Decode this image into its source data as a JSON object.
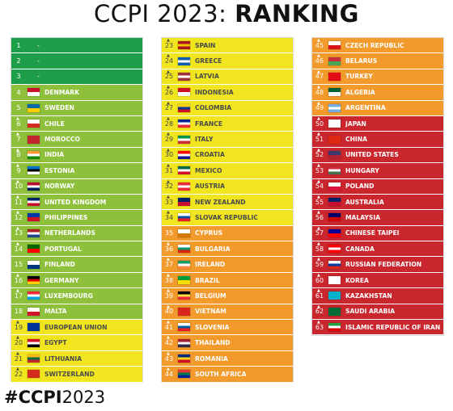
{
  "title": {
    "normal": "CCPI 2023: ",
    "bold": "RANKING"
  },
  "hashtag": {
    "bold": "#CCPI",
    "normal": "2023"
  },
  "colors": {
    "very_high": "#1f9e4a",
    "high": "#8fc03c",
    "medium": "#f0e51f",
    "low": "#f39a2d",
    "very_low": "#c9262e"
  },
  "columns": [
    [
      {
        "rank": "1",
        "name": "-",
        "group": "g1",
        "trend": "",
        "flag": []
      },
      {
        "rank": "2",
        "name": "-",
        "group": "g1",
        "trend": "",
        "flag": []
      },
      {
        "rank": "3",
        "name": "-",
        "group": "g1",
        "trend": "",
        "flag": []
      },
      {
        "rank": "4",
        "name": "DENMARK",
        "group": "g2",
        "trend": "",
        "flag": [
          "#c8102e",
          "#ffffff"
        ]
      },
      {
        "rank": "5",
        "name": "SWEDEN",
        "group": "g2",
        "trend": "",
        "flag": [
          "#006aa7",
          "#fecc00"
        ]
      },
      {
        "rank": "6",
        "name": "CHILE",
        "group": "g2",
        "trend": "▲",
        "flag": [
          "#ffffff",
          "#d52b1e"
        ]
      },
      {
        "rank": "7",
        "name": "MOROCCO",
        "group": "g2",
        "trend": "▲",
        "flag": [
          "#c1272d",
          "#c1272d"
        ]
      },
      {
        "rank": "8",
        "name": "INDIA",
        "group": "g2",
        "trend": "▲",
        "flag": [
          "#ff9933",
          "#ffffff",
          "#138808"
        ]
      },
      {
        "rank": "9",
        "name": "ESTONIA",
        "group": "g2",
        "trend": "▲",
        "flag": [
          "#0072ce",
          "#000000",
          "#ffffff"
        ]
      },
      {
        "rank": "10",
        "name": "NORWAY",
        "group": "g2",
        "trend": "▲",
        "flag": [
          "#ba0c2f",
          "#ffffff",
          "#00205b"
        ]
      },
      {
        "rank": "11",
        "name": "UNITED KINGDOM",
        "group": "g2",
        "trend": "▲",
        "flag": [
          "#012169",
          "#ffffff",
          "#c8102e"
        ]
      },
      {
        "rank": "12",
        "name": "PHILIPPINES",
        "group": "g2",
        "trend": "▲",
        "flag": [
          "#0038a8",
          "#ce1126"
        ]
      },
      {
        "rank": "13",
        "name": "NETHERLANDS",
        "group": "g2",
        "trend": "▲",
        "flag": [
          "#ae1c28",
          "#ffffff",
          "#21468b"
        ]
      },
      {
        "rank": "14",
        "name": "PORTUGAL",
        "group": "g2",
        "trend": "▲",
        "flag": [
          "#006600",
          "#ff0000"
        ]
      },
      {
        "rank": "15",
        "name": "FINLAND",
        "group": "g2",
        "trend": "",
        "flag": [
          "#ffffff",
          "#003580"
        ]
      },
      {
        "rank": "16",
        "name": "GERMANY",
        "group": "g2",
        "trend": "▲",
        "flag": [
          "#000000",
          "#dd0000",
          "#ffce00"
        ]
      },
      {
        "rank": "17",
        "name": "LUXEMBOURG",
        "group": "g2",
        "trend": "▲",
        "flag": [
          "#ed2939",
          "#ffffff",
          "#00a1de"
        ]
      },
      {
        "rank": "18",
        "name": "MALTA",
        "group": "g2",
        "trend": "",
        "flag": [
          "#ffffff",
          "#cf142b"
        ]
      },
      {
        "rank": "19",
        "name": "EUROPEAN UNION",
        "group": "g3",
        "trend": "▲",
        "flag": [
          "#003399",
          "#003399"
        ]
      },
      {
        "rank": "20",
        "name": "EGYPT",
        "group": "g3",
        "trend": "▲",
        "flag": [
          "#ce1126",
          "#ffffff",
          "#000000"
        ]
      },
      {
        "rank": "21",
        "name": "LITHUANIA",
        "group": "g3",
        "trend": "▲",
        "flag": [
          "#fdb913",
          "#006a44",
          "#c1272d"
        ]
      },
      {
        "rank": "22",
        "name": "SWITZERLAND",
        "group": "g3",
        "trend": "▲",
        "flag": [
          "#d52b1e",
          "#d52b1e"
        ]
      }
    ],
    [
      {
        "rank": "23",
        "name": "SPAIN",
        "group": "g3",
        "trend": "▲",
        "flag": [
          "#aa151b",
          "#f1bf00",
          "#aa151b"
        ]
      },
      {
        "rank": "24",
        "name": "GREECE",
        "group": "g3",
        "trend": "▲",
        "flag": [
          "#0d5eaf",
          "#ffffff",
          "#0d5eaf"
        ]
      },
      {
        "rank": "25",
        "name": "LATVIA",
        "group": "g3",
        "trend": "▲",
        "flag": [
          "#9e3039",
          "#ffffff",
          "#9e3039"
        ]
      },
      {
        "rank": "26",
        "name": "INDONESIA",
        "group": "g3",
        "trend": "▲",
        "flag": [
          "#ce1126",
          "#ffffff"
        ]
      },
      {
        "rank": "27",
        "name": "COLOMBIA",
        "group": "g3",
        "trend": "▲",
        "flag": [
          "#fcd116",
          "#003893",
          "#ce1126"
        ]
      },
      {
        "rank": "28",
        "name": "FRANCE",
        "group": "g3",
        "trend": "▲",
        "flag": [
          "#002395",
          "#ffffff",
          "#ed2939"
        ]
      },
      {
        "rank": "29",
        "name": "ITALY",
        "group": "g3",
        "trend": "▲",
        "flag": [
          "#009246",
          "#ffffff",
          "#ce2b37"
        ]
      },
      {
        "rank": "30",
        "name": "CROATIA",
        "group": "g3",
        "trend": "▲",
        "flag": [
          "#ff0000",
          "#ffffff",
          "#171796"
        ]
      },
      {
        "rank": "31",
        "name": "MEXICO",
        "group": "g3",
        "trend": "▲",
        "flag": [
          "#006847",
          "#ffffff",
          "#ce1126"
        ]
      },
      {
        "rank": "32",
        "name": "AUSTRIA",
        "group": "g3",
        "trend": "▲",
        "flag": [
          "#ed2939",
          "#ffffff",
          "#ed2939"
        ]
      },
      {
        "rank": "33",
        "name": "NEW ZEALAND",
        "group": "g3",
        "trend": "▲",
        "flag": [
          "#012169",
          "#c8102e"
        ]
      },
      {
        "rank": "34",
        "name": "SLOVAK REPUBLIC",
        "group": "g3",
        "trend": "▲",
        "flag": [
          "#ffffff",
          "#0b4ea2",
          "#ee1c25"
        ]
      },
      {
        "rank": "35",
        "name": "CYPRUS",
        "group": "g4",
        "trend": "",
        "flag": [
          "#ffffff",
          "#d57800"
        ]
      },
      {
        "rank": "36",
        "name": "BULGARIA",
        "group": "g4",
        "trend": "▲",
        "flag": [
          "#ffffff",
          "#00966e",
          "#d62612"
        ]
      },
      {
        "rank": "37",
        "name": "IRELAND",
        "group": "g4",
        "trend": "▲",
        "flag": [
          "#169b62",
          "#ffffff",
          "#ff883e"
        ]
      },
      {
        "rank": "38",
        "name": "BRAZIL",
        "group": "g4",
        "trend": "▲",
        "flag": [
          "#009c3b",
          "#ffdf00"
        ]
      },
      {
        "rank": "39",
        "name": "BELGIUM",
        "group": "g4",
        "trend": "▲",
        "flag": [
          "#000000",
          "#fae042",
          "#ed2939"
        ]
      },
      {
        "rank": "40",
        "name": "VIETNAM",
        "group": "g4",
        "trend": "▲",
        "flag": [
          "#da251d",
          "#da251d"
        ]
      },
      {
        "rank": "41",
        "name": "SLOVENIA",
        "group": "g4",
        "trend": "▲",
        "flag": [
          "#ffffff",
          "#005da4",
          "#ed1c24"
        ]
      },
      {
        "rank": "42",
        "name": "THAILAND",
        "group": "g4",
        "trend": "▲",
        "flag": [
          "#a51931",
          "#f4f5f8",
          "#2d2a4a"
        ]
      },
      {
        "rank": "43",
        "name": "ROMANIA",
        "group": "g4",
        "trend": "▲",
        "flag": [
          "#002b7f",
          "#fcd116",
          "#ce1126"
        ]
      },
      {
        "rank": "44",
        "name": "SOUTH AFRICA",
        "group": "g4",
        "trend": "▲",
        "flag": [
          "#de3831",
          "#007a4d",
          "#002395"
        ]
      }
    ],
    [
      {
        "rank": "45",
        "name": "CZECH REPUBLIC",
        "group": "g4",
        "trend": "▲",
        "flag": [
          "#ffffff",
          "#d7141a"
        ]
      },
      {
        "rank": "46",
        "name": "BELARUS",
        "group": "g4",
        "trend": "▲",
        "flag": [
          "#c8313e",
          "#4aa657"
        ]
      },
      {
        "rank": "47",
        "name": "TURKEY",
        "group": "g4",
        "trend": "▲",
        "flag": [
          "#e30a17",
          "#e30a17"
        ]
      },
      {
        "rank": "48",
        "name": "ALGERIA",
        "group": "g4",
        "trend": "▲",
        "flag": [
          "#006233",
          "#ffffff"
        ]
      },
      {
        "rank": "49",
        "name": "ARGENTINA",
        "group": "g4",
        "trend": "▲",
        "flag": [
          "#74acdf",
          "#ffffff",
          "#74acdf"
        ]
      },
      {
        "rank": "50",
        "name": "JAPAN",
        "group": "g5",
        "trend": "▲",
        "flag": [
          "#ffffff",
          "#ffffff"
        ]
      },
      {
        "rank": "51",
        "name": "CHINA",
        "group": "g5",
        "trend": "▲",
        "flag": [
          "#de2910",
          "#de2910"
        ]
      },
      {
        "rank": "52",
        "name": "UNITED STATES",
        "group": "g5",
        "trend": "▲",
        "flag": [
          "#3c3b6e",
          "#b22234"
        ]
      },
      {
        "rank": "53",
        "name": "HUNGARY",
        "group": "g5",
        "trend": "▲",
        "flag": [
          "#ce2939",
          "#ffffff",
          "#477050"
        ]
      },
      {
        "rank": "54",
        "name": "POLAND",
        "group": "g5",
        "trend": "▲",
        "flag": [
          "#ffffff",
          "#dc143c"
        ]
      },
      {
        "rank": "55",
        "name": "AUSTRALIA",
        "group": "g5",
        "trend": "▲",
        "flag": [
          "#012169",
          "#c8102e"
        ]
      },
      {
        "rank": "56",
        "name": "MALAYSIA",
        "group": "g5",
        "trend": "▲",
        "flag": [
          "#010066",
          "#cc0001"
        ]
      },
      {
        "rank": "57",
        "name": "CHINESE TAIPEI",
        "group": "g5",
        "trend": "▲",
        "flag": [
          "#000095",
          "#fe0000"
        ]
      },
      {
        "rank": "58",
        "name": "CANADA",
        "group": "g5",
        "trend": "▲",
        "flag": [
          "#ff0000",
          "#ffffff",
          "#ff0000"
        ]
      },
      {
        "rank": "59",
        "name": "RUSSIAN FEDERATION",
        "group": "g5",
        "trend": "▲",
        "flag": [
          "#ffffff",
          "#0039a6",
          "#d52b1e"
        ]
      },
      {
        "rank": "60",
        "name": "KOREA",
        "group": "g5",
        "trend": "▲",
        "flag": [
          "#ffffff",
          "#ffffff"
        ]
      },
      {
        "rank": "61",
        "name": "KAZAKHSTAN",
        "group": "g5",
        "trend": "▲",
        "flag": [
          "#00afca",
          "#00afca"
        ]
      },
      {
        "rank": "62",
        "name": "SAUDI ARABIA",
        "group": "g5",
        "trend": "▲",
        "flag": [
          "#006c35",
          "#006c35"
        ]
      },
      {
        "rank": "63",
        "name": "ISLAMIC REPUBLIC OF IRAN",
        "group": "g5",
        "trend": "▲",
        "flag": [
          "#239f40",
          "#ffffff",
          "#da0000"
        ]
      }
    ]
  ]
}
